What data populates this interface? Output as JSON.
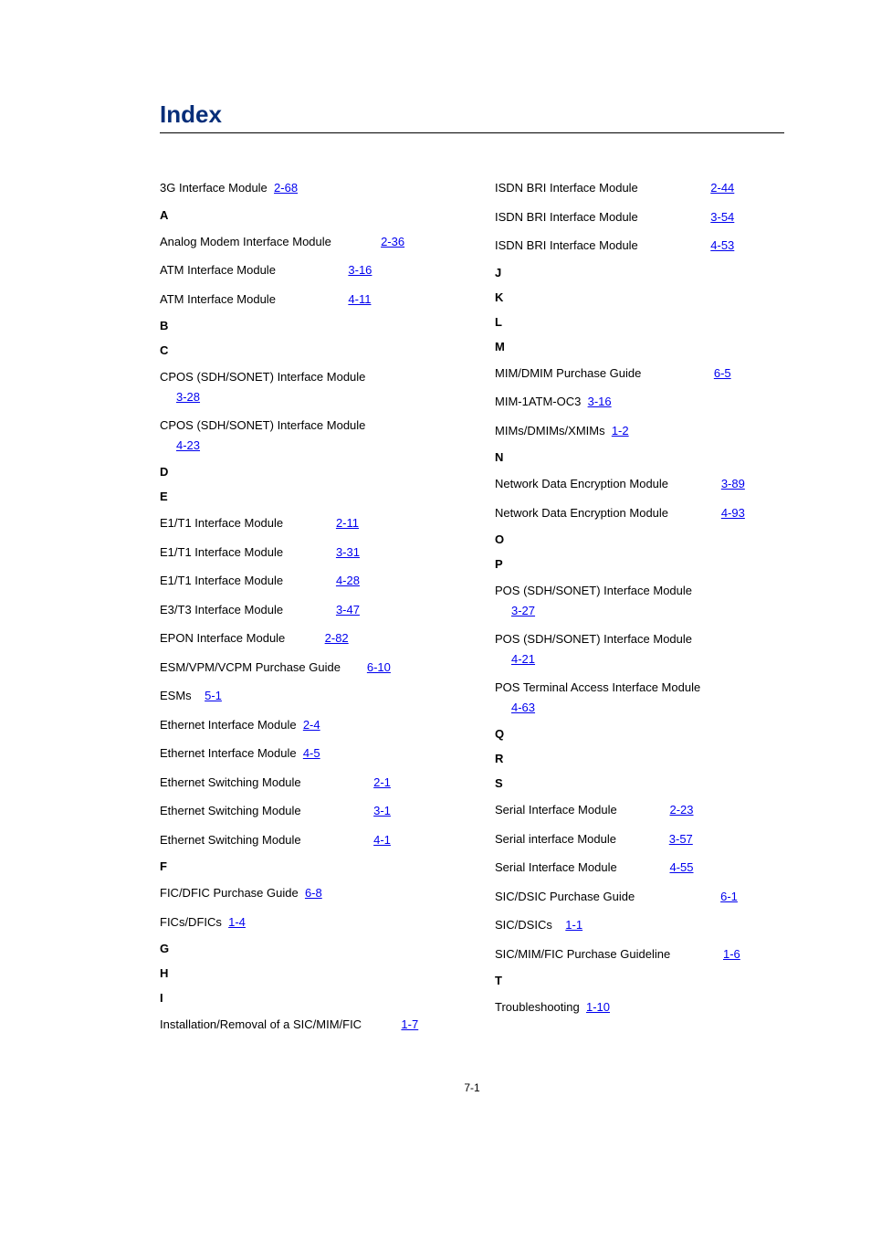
{
  "title": "Index",
  "pageNumber": "7-1",
  "leftColumn": [
    {
      "type": "entry",
      "text": "3G Interface Module",
      "link": "2-68",
      "spacing": 2
    },
    {
      "type": "heading",
      "text": "A"
    },
    {
      "type": "entry",
      "text": "Analog Modem Interface Module",
      "link": "2-36",
      "spacing": 15
    },
    {
      "type": "entry",
      "text": "ATM Interface Module",
      "link": "3-16",
      "spacing": 22
    },
    {
      "type": "entry",
      "text": "ATM Interface Module",
      "link": "4-11",
      "spacing": 22
    },
    {
      "type": "heading",
      "text": "B"
    },
    {
      "type": "heading",
      "text": "C"
    },
    {
      "type": "entry-split",
      "text": "CPOS (SDH/SONET) Interface Module",
      "link": "3-28"
    },
    {
      "type": "entry-split",
      "text": "CPOS (SDH/SONET) Interface Module",
      "link": "4-23"
    },
    {
      "type": "heading",
      "text": "D"
    },
    {
      "type": "heading",
      "text": "E"
    },
    {
      "type": "entry",
      "text": "E1/T1 Interface Module",
      "link": "2-11",
      "spacing": 16
    },
    {
      "type": "entry",
      "text": "E1/T1 Interface Module",
      "link": "3-31",
      "spacing": 16
    },
    {
      "type": "entry",
      "text": "E1/T1 Interface Module",
      "link": "4-28",
      "spacing": 16
    },
    {
      "type": "entry",
      "text": "E3/T3 Interface Module",
      "link": "3-47",
      "spacing": 16
    },
    {
      "type": "entry",
      "text": "EPON Interface Module",
      "link": "2-82",
      "spacing": 12
    },
    {
      "type": "entry",
      "text": "ESM/VPM/VCPM Purchase Guide",
      "link": "6-10",
      "spacing": 8
    },
    {
      "type": "entry",
      "text": "ESMs",
      "link": "5-1",
      "spacing": 4
    },
    {
      "type": "entry",
      "text": "Ethernet Interface Module",
      "link": "2-4",
      "spacing": 2
    },
    {
      "type": "entry",
      "text": "Ethernet Interface Module",
      "link": "4-5",
      "spacing": 2
    },
    {
      "type": "entry",
      "text": "Ethernet Switching Module",
      "link": "2-1",
      "spacing": 22
    },
    {
      "type": "entry",
      "text": "Ethernet Switching Module",
      "link": "3-1",
      "spacing": 22
    },
    {
      "type": "entry",
      "text": "Ethernet Switching Module",
      "link": "4-1",
      "spacing": 22
    },
    {
      "type": "heading",
      "text": "F"
    },
    {
      "type": "entry",
      "text": "FIC/DFIC Purchase Guide",
      "link": "6-8",
      "spacing": 2
    },
    {
      "type": "entry",
      "text": "FICs/DFICs",
      "link": "1-4",
      "spacing": 2
    },
    {
      "type": "heading",
      "text": "G"
    },
    {
      "type": "heading",
      "text": "H"
    },
    {
      "type": "heading",
      "text": "I"
    },
    {
      "type": "entry",
      "text": "Installation/Removal of a SIC/MIM/FIC",
      "link": "1-7",
      "spacing": 12
    }
  ],
  "rightColumn": [
    {
      "type": "entry",
      "text": "ISDN BRI Interface Module",
      "link": "2-44",
      "spacing": 22
    },
    {
      "type": "entry",
      "text": "ISDN BRI Interface Module",
      "link": "3-54",
      "spacing": 22
    },
    {
      "type": "entry",
      "text": "ISDN BRI Interface Module",
      "link": "4-53",
      "spacing": 22
    },
    {
      "type": "heading",
      "text": "J"
    },
    {
      "type": "heading",
      "text": "K"
    },
    {
      "type": "heading",
      "text": "L"
    },
    {
      "type": "heading",
      "text": "M"
    },
    {
      "type": "entry",
      "text": "MIM/DMIM Purchase Guide",
      "link": "6-5",
      "spacing": 22
    },
    {
      "type": "entry",
      "text": "MIM-1ATM-OC3",
      "link": "3-16",
      "spacing": 2
    },
    {
      "type": "entry",
      "text": "MIMs/DMIMs/XMIMs",
      "link": "1-2",
      "spacing": 2
    },
    {
      "type": "heading",
      "text": "N"
    },
    {
      "type": "entry",
      "text": "Network Data Encryption Module",
      "link": "3-89",
      "spacing": 16
    },
    {
      "type": "entry",
      "text": "Network Data Encryption Module",
      "link": "4-93",
      "spacing": 16
    },
    {
      "type": "heading",
      "text": "O"
    },
    {
      "type": "heading",
      "text": "P"
    },
    {
      "type": "entry-split",
      "text": "POS (SDH/SONET) Interface Module",
      "link": "3-27"
    },
    {
      "type": "entry-split",
      "text": "POS (SDH/SONET) Interface Module",
      "link": "4-21"
    },
    {
      "type": "entry-split",
      "text": "POS Terminal Access Interface Module",
      "link": "4-63"
    },
    {
      "type": "heading",
      "text": "Q"
    },
    {
      "type": "heading",
      "text": "R"
    },
    {
      "type": "heading",
      "text": "S"
    },
    {
      "type": "entry",
      "text": "Serial Interface Module",
      "link": "2-23",
      "spacing": 16
    },
    {
      "type": "entry",
      "text": "Serial interface Module",
      "link": "3-57",
      "spacing": 16
    },
    {
      "type": "entry",
      "text": "Serial Interface Module",
      "link": "4-55",
      "spacing": 16
    },
    {
      "type": "entry",
      "text": "SIC/DSIC Purchase Guide",
      "link": "6-1",
      "spacing": 26
    },
    {
      "type": "entry",
      "text": "SIC/DSICs",
      "link": "1-1",
      "spacing": 4
    },
    {
      "type": "entry",
      "text": "SIC/MIM/FIC Purchase Guideline",
      "link": "1-6",
      "spacing": 16
    },
    {
      "type": "heading",
      "text": "T"
    },
    {
      "type": "entry",
      "text": "Troubleshooting",
      "link": "1-10",
      "spacing": 2
    }
  ]
}
